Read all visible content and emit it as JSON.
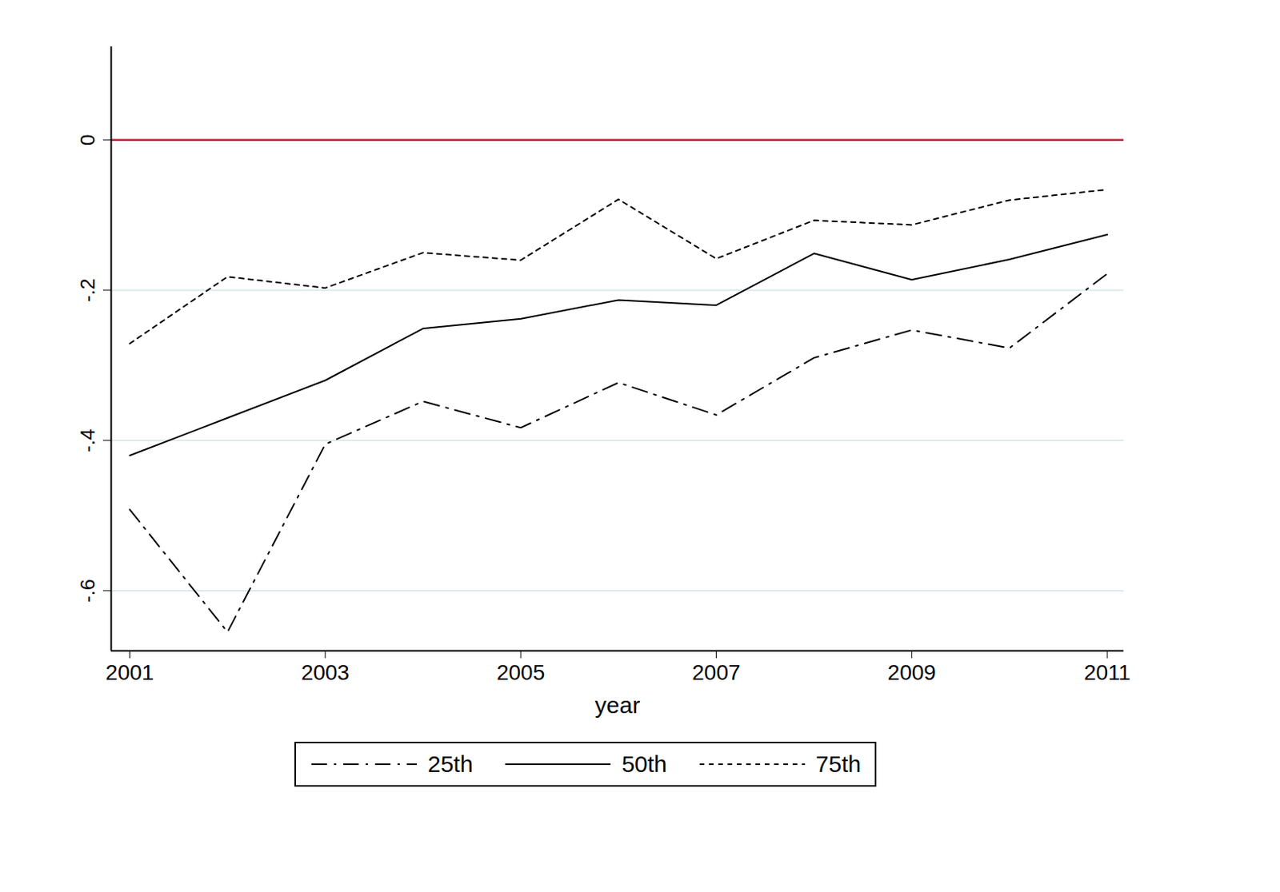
{
  "chart_data": {
    "type": "line",
    "x_label": "year",
    "x": [
      2001,
      2002,
      2003,
      2004,
      2005,
      2006,
      2007,
      2008,
      2009,
      2010,
      2011
    ],
    "series": [
      {
        "name": "25th",
        "color": "#000000",
        "line_style": "dashdot",
        "values": [
          -0.492,
          -0.655,
          -0.405,
          -0.348,
          -0.383,
          -0.323,
          -0.366,
          -0.29,
          -0.253,
          -0.277,
          -0.178
        ]
      },
      {
        "name": "50th",
        "color": "#000000",
        "line_style": "solid",
        "values": [
          -0.42,
          -0.37,
          -0.32,
          -0.251,
          -0.238,
          -0.213,
          -0.22,
          -0.151,
          -0.186,
          -0.159,
          -0.126
        ]
      },
      {
        "name": "75th",
        "color": "#000000",
        "line_style": "dotted",
        "values": [
          -0.271,
          -0.182,
          -0.197,
          -0.15,
          -0.16,
          -0.079,
          -0.158,
          -0.107,
          -0.113,
          -0.08,
          -0.066
        ]
      }
    ],
    "reference_lines": [
      {
        "y": 0,
        "color": "#c8102e"
      }
    ],
    "xlim": [
      2000.81,
      2011.17
    ],
    "xticks": [
      2001,
      2003,
      2005,
      2007,
      2009,
      2011
    ],
    "ylim": [
      -0.68,
      0.124
    ],
    "yticks": [
      {
        "value": -0.6,
        "label": "-.6"
      },
      {
        "value": -0.4,
        "label": "-.4"
      },
      {
        "value": -0.2,
        "label": "-.2"
      },
      0
    ],
    "grid": true,
    "legend": "bottom"
  }
}
